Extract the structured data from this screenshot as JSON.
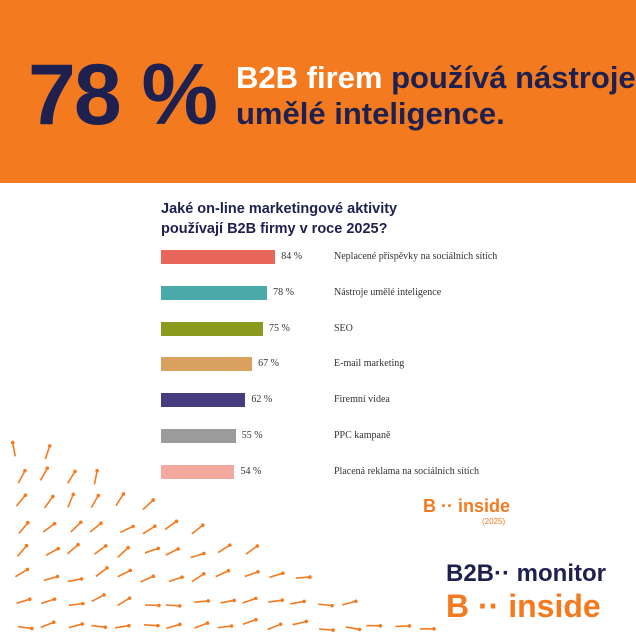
{
  "header": {
    "stat": "78 %",
    "highlight": "B2B firem",
    "rest_line1": "používá nástroje",
    "rest_line2": "umělé inteligence."
  },
  "chart_data": {
    "type": "bar",
    "orientation": "horizontal",
    "title": [
      "Jaké on-line marketingové aktivity",
      "používají B2B firmy v roce 2025?"
    ],
    "categories": [
      "Neplacené příspěvky na sociálních sítích",
      "Nástroje umělé inteligence",
      "SEO",
      "E-mail marketing",
      "Firemní videa",
      "PPC kampaně",
      "Placená reklama na sociálních sítích"
    ],
    "values": [
      84,
      78,
      75,
      67,
      62,
      55,
      54
    ],
    "value_labels": [
      "84 %",
      "78 %",
      "75 %",
      "67 %",
      "62 %",
      "55 %",
      "54 %"
    ],
    "colors": [
      "#e8665a",
      "#4aa9a9",
      "#8a9a1c",
      "#d9a060",
      "#463c7e",
      "#9b9b9b",
      "#f3a8a0"
    ]
  },
  "logos": {
    "small": {
      "letter": "B",
      "word": "inside",
      "year": "(2025)"
    },
    "monitor": {
      "letter": "B2B",
      "word": "monitor"
    },
    "inside": {
      "letter": "B",
      "word": "inside"
    }
  }
}
